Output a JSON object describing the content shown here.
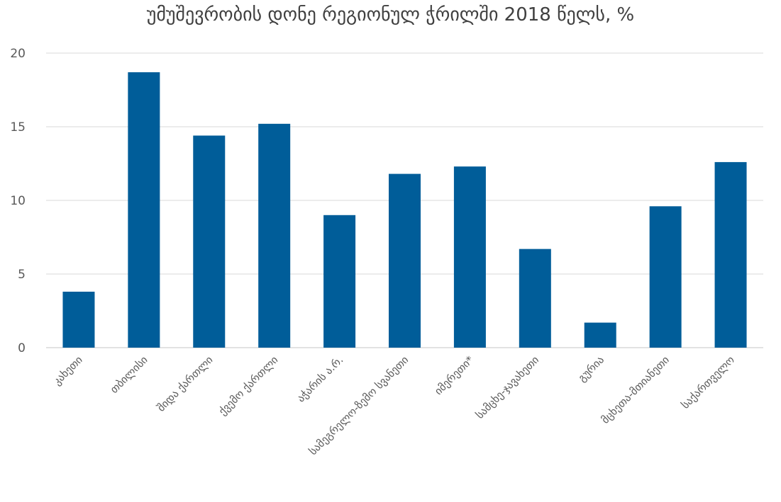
{
  "chart_data": {
    "type": "bar",
    "title": "უმუშევრობის დონე რეგიონულ ჭრილში 2018 წელს, %",
    "categories": [
      "კახეთი",
      "თბილისი",
      "შიდა ქართლი",
      "ქვემო ქართლი",
      "აჭარის ა.რ.",
      "სამეგრელო-ზემო სვანეთი",
      "იმერეთი*",
      "სამცხე-ჯავახეთი",
      "გურია",
      "მცხეთა-მთიანეთი",
      "საქართველო"
    ],
    "values": [
      3.8,
      18.7,
      14.4,
      15.2,
      9.0,
      11.8,
      12.3,
      6.7,
      1.7,
      9.6,
      12.6
    ],
    "ylim": [
      0,
      20
    ],
    "yticks": [
      0,
      5,
      10,
      15,
      20
    ],
    "xlabel": "",
    "ylabel": "",
    "grid": true,
    "legend": "none",
    "bar_color": "#005D99",
    "grid_color": "#D9D9D9"
  }
}
